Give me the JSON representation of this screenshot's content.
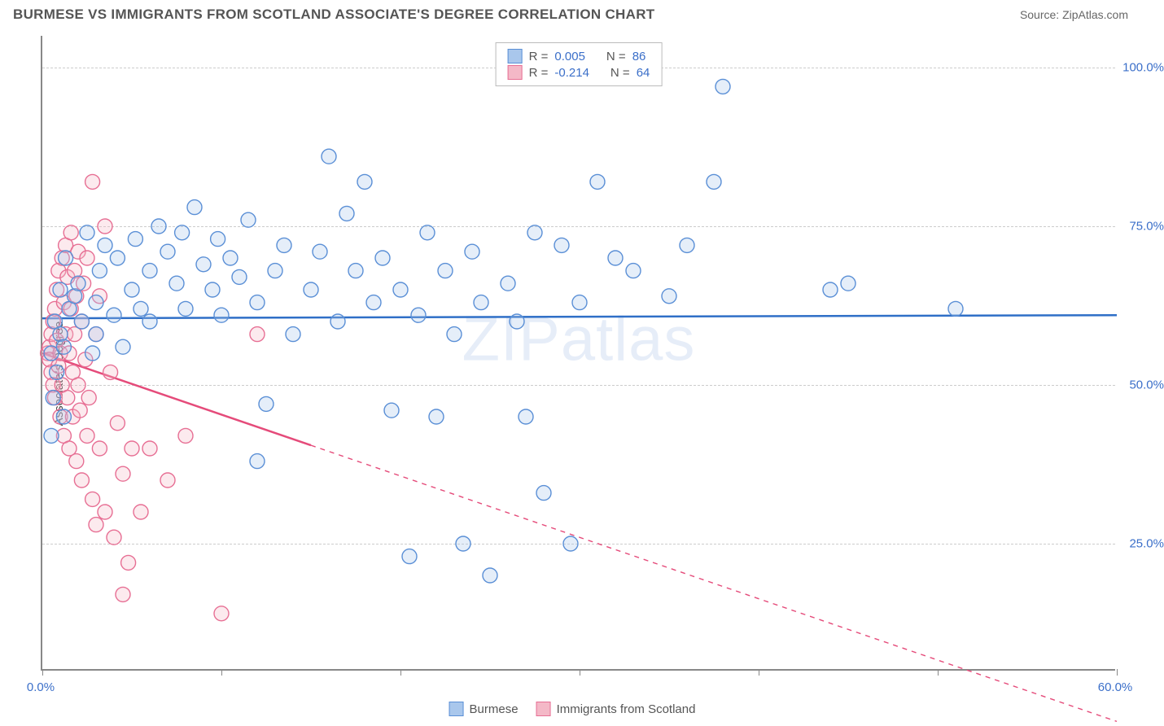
{
  "header": {
    "title": "BURMESE VS IMMIGRANTS FROM SCOTLAND ASSOCIATE'S DEGREE CORRELATION CHART",
    "source_prefix": "Source: ",
    "source": "ZipAtlas.com"
  },
  "chart": {
    "type": "scatter",
    "y_axis_title": "Associate's Degree",
    "watermark": "ZIPatlas",
    "xlim": [
      0,
      60
    ],
    "ylim": [
      5,
      105
    ],
    "y_gridlines": [
      25,
      50,
      75,
      100
    ],
    "y_tick_labels": [
      "25.0%",
      "50.0%",
      "75.0%",
      "100.0%"
    ],
    "x_ticks": [
      0,
      10,
      20,
      30,
      40,
      50,
      60
    ],
    "x_tick_labels_shown": {
      "0": "0.0%",
      "60": "60.0%"
    },
    "background_color": "#ffffff",
    "grid_color": "#cccccc",
    "axis_color": "#888888",
    "tick_label_color": "#3b6fc9",
    "marker_radius": 9,
    "marker_stroke_width": 1.4,
    "marker_fill_opacity": 0.3,
    "series": [
      {
        "name": "Burmese",
        "color_fill": "#a9c7ec",
        "color_stroke": "#5a8fd6",
        "R": "0.005",
        "N": "86",
        "trend": {
          "y_at_x0": 60.5,
          "y_at_x60": 61.0,
          "solid_until_x": 60,
          "line_color": "#2f6fc7",
          "line_width": 2.5
        },
        "points": [
          [
            0.5,
            55
          ],
          [
            0.5,
            42
          ],
          [
            0.6,
            48
          ],
          [
            0.8,
            52
          ],
          [
            0.7,
            60
          ],
          [
            1.0,
            58
          ],
          [
            1.2,
            56
          ],
          [
            1.0,
            65
          ],
          [
            1.5,
            62
          ],
          [
            1.3,
            70
          ],
          [
            1.2,
            45
          ],
          [
            1.8,
            64
          ],
          [
            2.0,
            66
          ],
          [
            2.2,
            60
          ],
          [
            2.5,
            74
          ],
          [
            3.0,
            63
          ],
          [
            2.8,
            55
          ],
          [
            3.2,
            68
          ],
          [
            3.5,
            72
          ],
          [
            3.0,
            58
          ],
          [
            4.0,
            61
          ],
          [
            4.2,
            70
          ],
          [
            4.5,
            56
          ],
          [
            5.0,
            65
          ],
          [
            5.2,
            73
          ],
          [
            5.5,
            62
          ],
          [
            6.0,
            68
          ],
          [
            6.0,
            60
          ],
          [
            6.5,
            75
          ],
          [
            7.0,
            71
          ],
          [
            7.5,
            66
          ],
          [
            7.8,
            74
          ],
          [
            8.0,
            62
          ],
          [
            8.5,
            78
          ],
          [
            9.0,
            69
          ],
          [
            9.5,
            65
          ],
          [
            9.8,
            73
          ],
          [
            10.0,
            61
          ],
          [
            10.5,
            70
          ],
          [
            11.0,
            67
          ],
          [
            11.5,
            76
          ],
          [
            12.0,
            63
          ],
          [
            12.5,
            47
          ],
          [
            13.0,
            68
          ],
          [
            13.5,
            72
          ],
          [
            14.0,
            58
          ],
          [
            12.0,
            38
          ],
          [
            15.0,
            65
          ],
          [
            15.5,
            71
          ],
          [
            16.0,
            86
          ],
          [
            16.5,
            60
          ],
          [
            17.0,
            77
          ],
          [
            17.5,
            68
          ],
          [
            18.0,
            82
          ],
          [
            18.5,
            63
          ],
          [
            19.0,
            70
          ],
          [
            19.5,
            46
          ],
          [
            20.0,
            65
          ],
          [
            20.5,
            23
          ],
          [
            21.0,
            61
          ],
          [
            21.5,
            74
          ],
          [
            22.0,
            45
          ],
          [
            22.5,
            68
          ],
          [
            23.0,
            58
          ],
          [
            23.5,
            25
          ],
          [
            24.0,
            71
          ],
          [
            24.5,
            63
          ],
          [
            25.0,
            20
          ],
          [
            26.0,
            66
          ],
          [
            26.5,
            60
          ],
          [
            27.0,
            45
          ],
          [
            27.5,
            74
          ],
          [
            28.0,
            33
          ],
          [
            29.0,
            72
          ],
          [
            29.5,
            25
          ],
          [
            30.0,
            63
          ],
          [
            31.0,
            82
          ],
          [
            32.0,
            70
          ],
          [
            33.0,
            68
          ],
          [
            35.0,
            64
          ],
          [
            36.0,
            72
          ],
          [
            37.5,
            82
          ],
          [
            38.0,
            97
          ],
          [
            44.0,
            65
          ],
          [
            45.0,
            66
          ],
          [
            51.0,
            62
          ]
        ]
      },
      {
        "name": "Immigrants from Scotland",
        "color_fill": "#f4b8c7",
        "color_stroke": "#e76f94",
        "R": "-0.214",
        "N": "64",
        "trend": {
          "y_at_x0": 55.0,
          "y_at_x60": -3.0,
          "solid_until_x": 15,
          "line_color": "#e54b7a",
          "line_width": 2.5
        },
        "points": [
          [
            0.3,
            55
          ],
          [
            0.4,
            56
          ],
          [
            0.4,
            54
          ],
          [
            0.5,
            58
          ],
          [
            0.5,
            52
          ],
          [
            0.6,
            60
          ],
          [
            0.6,
            50
          ],
          [
            0.7,
            62
          ],
          [
            0.7,
            48
          ],
          [
            0.8,
            57
          ],
          [
            0.8,
            65
          ],
          [
            0.9,
            53
          ],
          [
            0.9,
            68
          ],
          [
            1.0,
            55
          ],
          [
            1.0,
            45
          ],
          [
            1.1,
            70
          ],
          [
            1.1,
            50
          ],
          [
            1.2,
            63
          ],
          [
            1.2,
            42
          ],
          [
            1.3,
            58
          ],
          [
            1.3,
            72
          ],
          [
            1.4,
            48
          ],
          [
            1.4,
            67
          ],
          [
            1.5,
            55
          ],
          [
            1.5,
            40
          ],
          [
            1.6,
            62
          ],
          [
            1.6,
            74
          ],
          [
            1.7,
            52
          ],
          [
            1.7,
            45
          ],
          [
            1.8,
            68
          ],
          [
            1.8,
            58
          ],
          [
            1.9,
            38
          ],
          [
            1.9,
            64
          ],
          [
            2.0,
            50
          ],
          [
            2.0,
            71
          ],
          [
            2.1,
            46
          ],
          [
            2.2,
            60
          ],
          [
            2.2,
            35
          ],
          [
            2.3,
            66
          ],
          [
            2.4,
            54
          ],
          [
            2.5,
            42
          ],
          [
            2.5,
            70
          ],
          [
            2.6,
            48
          ],
          [
            2.8,
            82
          ],
          [
            2.8,
            32
          ],
          [
            3.0,
            58
          ],
          [
            3.0,
            28
          ],
          [
            3.2,
            64
          ],
          [
            3.2,
            40
          ],
          [
            3.5,
            75
          ],
          [
            3.5,
            30
          ],
          [
            3.8,
            52
          ],
          [
            4.0,
            26
          ],
          [
            4.2,
            44
          ],
          [
            4.5,
            36
          ],
          [
            4.5,
            17
          ],
          [
            4.8,
            22
          ],
          [
            5.0,
            40
          ],
          [
            5.5,
            30
          ],
          [
            6.0,
            40
          ],
          [
            7.0,
            35
          ],
          [
            8.0,
            42
          ],
          [
            10.0,
            14
          ],
          [
            12.0,
            58
          ]
        ]
      }
    ],
    "stats_legend": {
      "r_label": "R =",
      "n_label": "N ="
    },
    "bottom_legend": {
      "items": [
        "Burmese",
        "Immigrants from Scotland"
      ]
    }
  }
}
